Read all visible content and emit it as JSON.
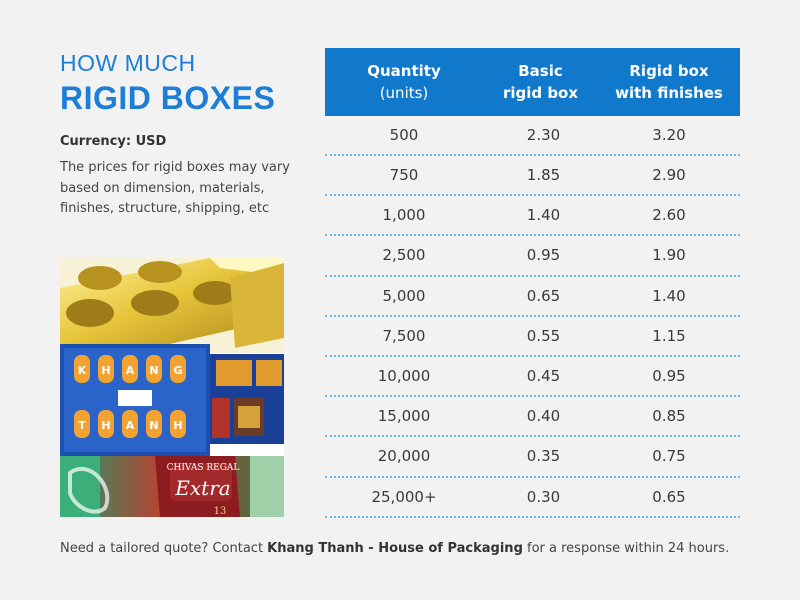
{
  "heading": {
    "line1": "HOW MUCH",
    "line2": "RIGID BOXES"
  },
  "currency_label": "Currency: USD",
  "description": "The prices for rigid boxes may vary based on dimension, materials, finishes, structure, shipping, etc",
  "photo": {
    "box_letters_top": "KHANG",
    "box_letters_bottom": "THANH",
    "label_brand": "CHIVAS REGAL",
    "label_name": "Extra",
    "label_age": "13"
  },
  "table": {
    "headers": {
      "quantity": "Quantity",
      "quantity_unit": "(units)",
      "basic_line1": "Basic",
      "basic_line2": "rigid box",
      "finishes_line1": "Rigid box",
      "finishes_line2": "with finishes"
    },
    "rows": [
      {
        "qty": "500",
        "basic": "2.30",
        "finishes": "3.20"
      },
      {
        "qty": "750",
        "basic": "1.85",
        "finishes": "2.90"
      },
      {
        "qty": "1,000",
        "basic": "1.40",
        "finishes": "2.60"
      },
      {
        "qty": "2,500",
        "basic": "0.95",
        "finishes": "1.90"
      },
      {
        "qty": "5,000",
        "basic": "0.65",
        "finishes": "1.40"
      },
      {
        "qty": "7,500",
        "basic": "0.55",
        "finishes": "1.15"
      },
      {
        "qty": "10,000",
        "basic": "0.45",
        "finishes": "0.95"
      },
      {
        "qty": "15,000",
        "basic": "0.40",
        "finishes": "0.85"
      },
      {
        "qty": "20,000",
        "basic": "0.35",
        "finishes": "0.75"
      },
      {
        "qty": "25,000+",
        "basic": "0.30",
        "finishes": "0.65"
      }
    ]
  },
  "footer": {
    "prefix": "Need a tailored quote? Contact ",
    "company": "Khang Thanh - House of Packaging",
    "suffix": " for a response within 24 hours."
  },
  "colors": {
    "accent": "#1c7ed6",
    "header_bg": "#1179cc",
    "divider": "#6fb5ea",
    "background": "#f2f2f2"
  }
}
